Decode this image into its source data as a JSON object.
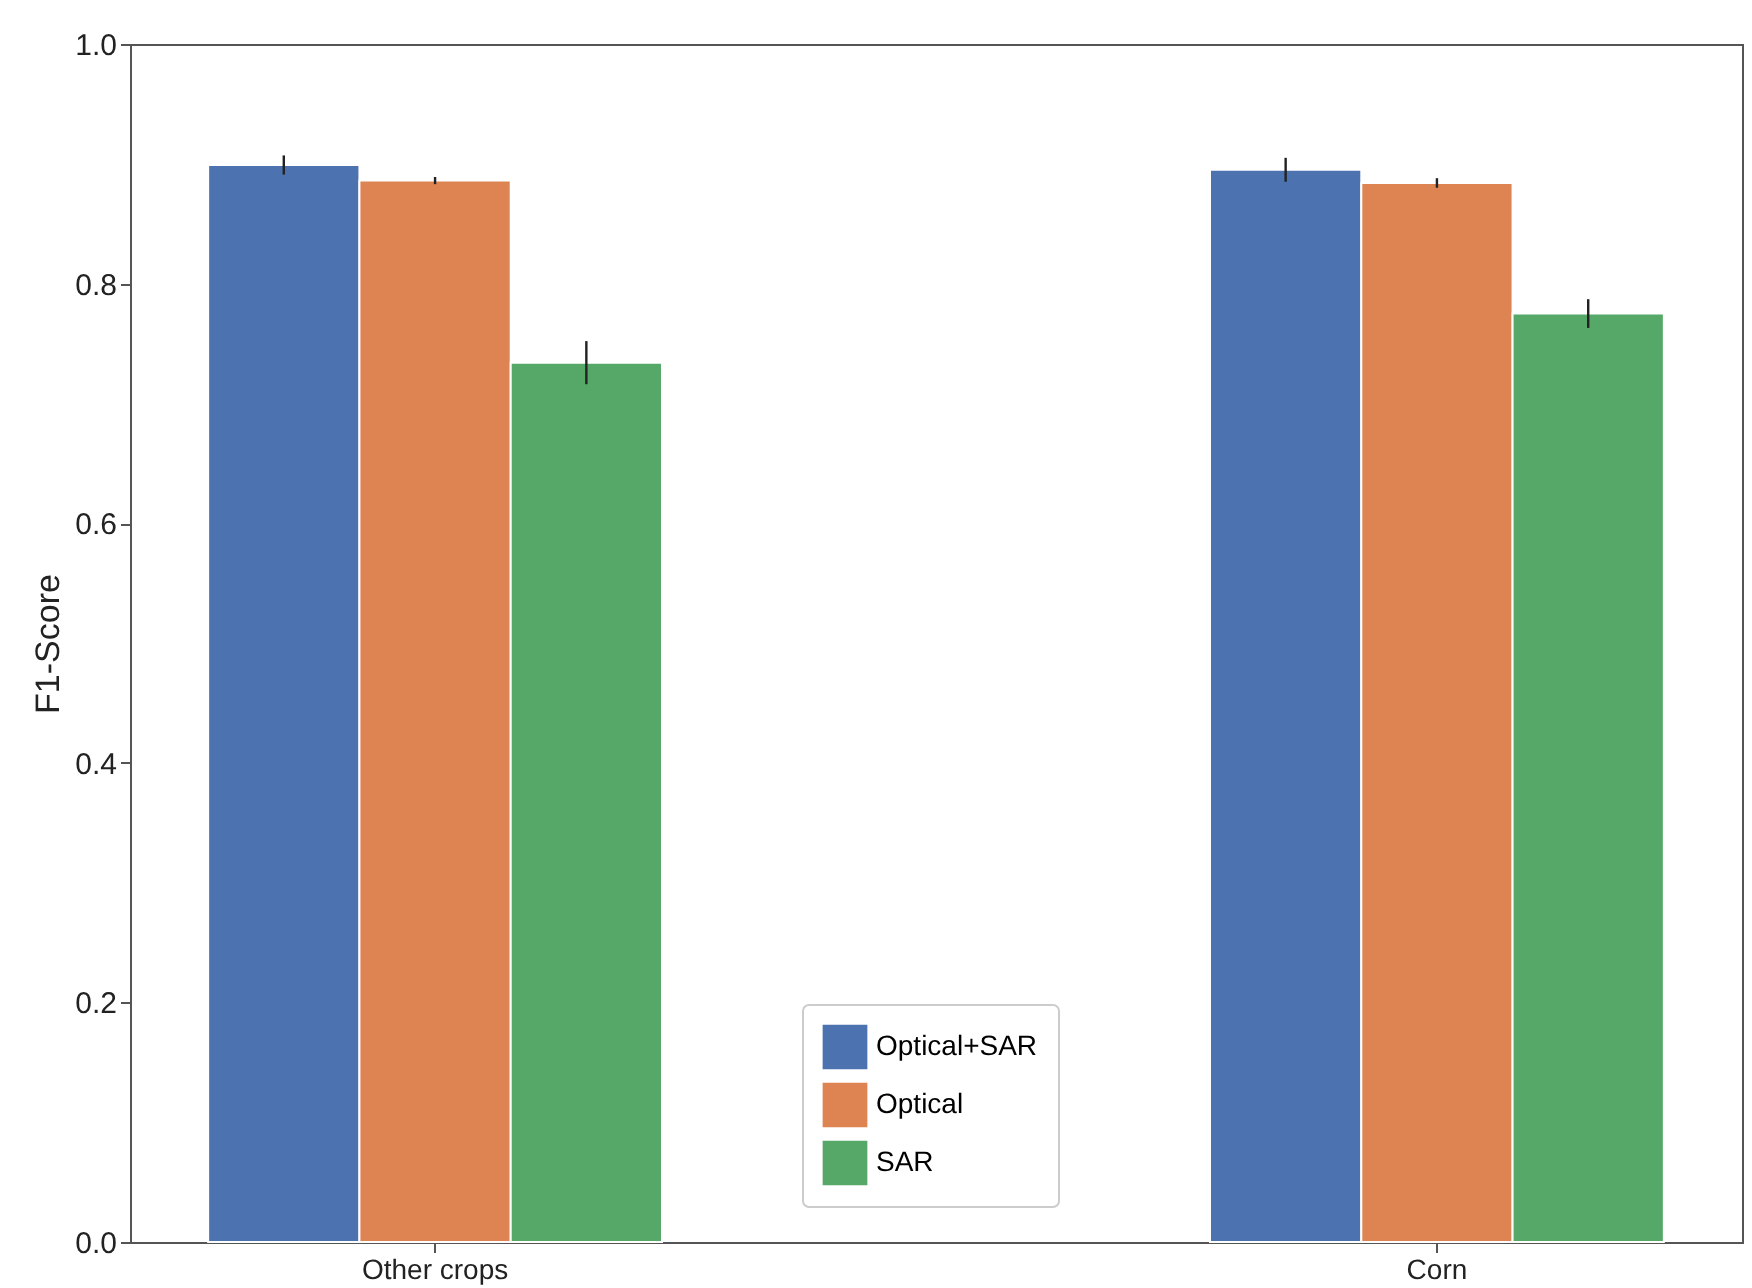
{
  "chart_data": {
    "type": "bar",
    "ylabel": "F1-Score",
    "categories": [
      "Other crops",
      "Corn"
    ],
    "series": [
      {
        "name": "Optical+SAR",
        "color": "#4c72b0",
        "values": [
          0.899,
          0.895
        ],
        "errors": [
          0.008,
          0.01
        ]
      },
      {
        "name": "Optical",
        "color": "#dd8452",
        "values": [
          0.886,
          0.884
        ],
        "errors": [
          0.003,
          0.004
        ]
      },
      {
        "name": "SAR",
        "color": "#55a868",
        "values": [
          0.734,
          0.775
        ],
        "errors": [
          0.018,
          0.012
        ]
      }
    ],
    "ylim": [
      0.0,
      1.0
    ],
    "yticks": [
      {
        "value": 0.0,
        "label": "0.0"
      },
      {
        "value": 0.2,
        "label": "0.2"
      },
      {
        "value": 0.4,
        "label": "0.4"
      },
      {
        "value": 0.6,
        "label": "0.6"
      },
      {
        "value": 0.8,
        "label": "0.8"
      },
      {
        "value": 1.0,
        "label": "1.0"
      }
    ],
    "grid": false,
    "legend": "bottom"
  }
}
